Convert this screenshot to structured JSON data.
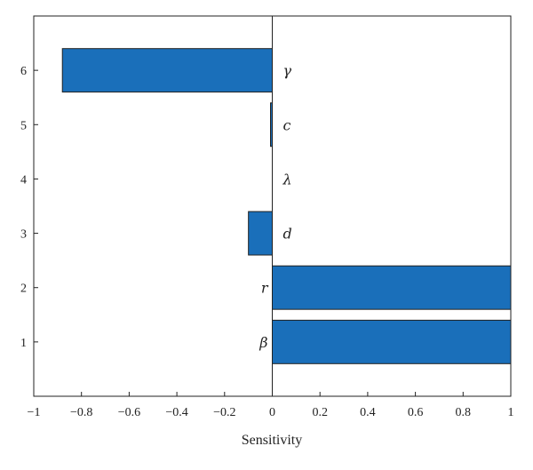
{
  "chart_data": {
    "type": "bar",
    "orientation": "horizontal",
    "title": "",
    "xlabel": "Sensitivity",
    "ylabel": "",
    "xlim": [
      -1,
      1
    ],
    "ylim": [
      0,
      7
    ],
    "xticks": [
      "−1",
      "−0.8",
      "−0.6",
      "−0.4",
      "−0.2",
      "0",
      "0.2",
      "0.4",
      "0.6",
      "0.8",
      "1"
    ],
    "yticks": [
      "1",
      "2",
      "3",
      "4",
      "5",
      "6"
    ],
    "categories": [
      "β",
      "r",
      "d",
      "λ",
      "c",
      "γ"
    ],
    "positions": [
      1,
      2,
      3,
      4,
      5,
      6
    ],
    "values": [
      1.0,
      1.0,
      -0.1,
      0.0,
      -0.005,
      -0.88
    ],
    "bar_color": "#1a6fba",
    "grid": false
  }
}
